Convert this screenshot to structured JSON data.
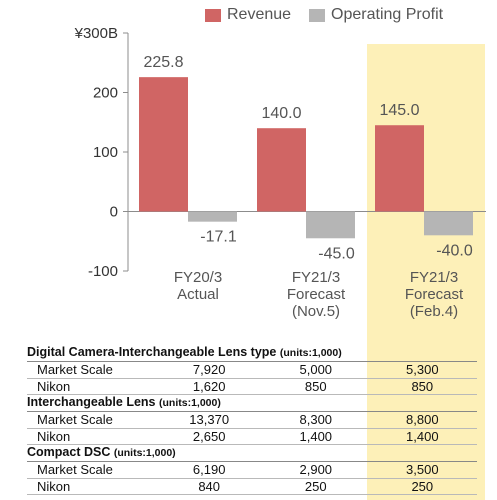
{
  "chart_data": {
    "type": "bar",
    "categories": [
      [
        "FY20/3",
        "Actual"
      ],
      [
        "FY21/3",
        "Forecast",
        "(Nov.5)"
      ],
      [
        "FY21/3",
        "Forecast",
        "(Feb.4)"
      ]
    ],
    "series": [
      {
        "name": "Revenue",
        "values": [
          225.8,
          140.0,
          145.0
        ],
        "labels": [
          "225.8",
          "140.0",
          "145.0"
        ],
        "color": "#d06564"
      },
      {
        "name": "Operating Profit",
        "values": [
          -17.1,
          -45.0,
          -40.0
        ],
        "labels": [
          "-17.1",
          "-45.0",
          "-40.0"
        ],
        "color": "#b5b5b5"
      }
    ],
    "yticks": [
      {
        "value": 300,
        "label": "¥300B"
      },
      {
        "value": 200,
        "label": "200"
      },
      {
        "value": 100,
        "label": "100"
      },
      {
        "value": 0,
        "label": "0"
      },
      {
        "value": -100,
        "label": "-100"
      }
    ],
    "ylim": [
      -100,
      300
    ],
    "highlight_category": 2,
    "highlight_color": "#fdf0b8",
    "grid": false,
    "legend": "top-right"
  },
  "table": {
    "sections": [
      {
        "title": "Digital Camera-Interchangeable Lens type",
        "units": "(units:1,000)",
        "rows": [
          {
            "label": "Market Scale",
            "values": [
              "7,920",
              "5,000",
              "5,300"
            ]
          },
          {
            "label": "Nikon",
            "values": [
              "1,620",
              "850",
              "850"
            ]
          }
        ]
      },
      {
        "title": "Interchangeable Lens",
        "units": "(units:1,000)",
        "rows": [
          {
            "label": "Market Scale",
            "values": [
              "13,370",
              "8,300",
              "8,800"
            ]
          },
          {
            "label": "Nikon",
            "values": [
              "2,650",
              "1,400",
              "1,400"
            ]
          }
        ]
      },
      {
        "title": "Compact DSC",
        "units": "(units:1,000)",
        "rows": [
          {
            "label": "Market Scale",
            "values": [
              "6,190",
              "2,900",
              "3,500"
            ]
          },
          {
            "label": "Nikon",
            "values": [
              "840",
              "250",
              "250"
            ]
          }
        ]
      }
    ]
  }
}
